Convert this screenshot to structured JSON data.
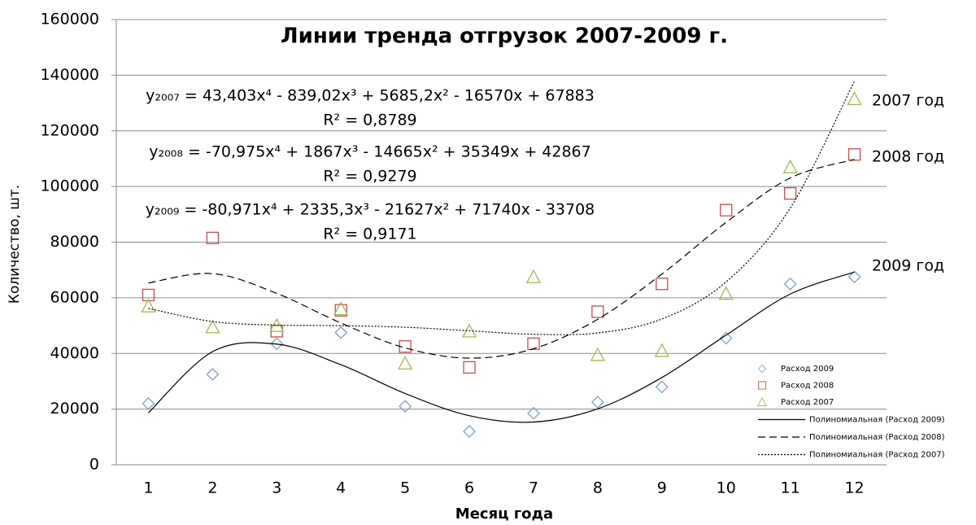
{
  "chart_data": {
    "type": "scatter",
    "title": "Линии тренда отгрузок 2007-2009 г.",
    "x_label": "Месяц года",
    "y_label": "Количество, шт.",
    "x": [
      1,
      2,
      3,
      4,
      5,
      6,
      7,
      8,
      9,
      10,
      11,
      12
    ],
    "xlim": [
      0.5,
      12.5
    ],
    "xticks": [
      1,
      2,
      3,
      4,
      5,
      6,
      7,
      8,
      9,
      10,
      11,
      12
    ],
    "ylim": [
      0,
      160000
    ],
    "yticks": [
      0,
      20000,
      40000,
      60000,
      80000,
      100000,
      120000,
      140000,
      160000
    ],
    "grid": true,
    "legend": "lower right",
    "series": [
      {
        "name": "Расход 2009",
        "kind": "points",
        "marker": "diamond",
        "color": "#7f9fcf",
        "values": [
          22000,
          32500,
          43500,
          47500,
          21000,
          12000,
          18500,
          22500,
          28000,
          45500,
          65000,
          67500
        ]
      },
      {
        "name": "Расход 2008",
        "kind": "points",
        "marker": "square",
        "color": "#c0504d",
        "values": [
          61000,
          81500,
          48000,
          55500,
          42500,
          35000,
          43500,
          55000,
          65000,
          91500,
          97500,
          111500
        ]
      },
      {
        "name": "Расход 2007",
        "kind": "points",
        "marker": "triangle",
        "color": "#9bbb59",
        "values": [
          57000,
          49500,
          50000,
          56000,
          36500,
          48000,
          67500,
          39500,
          41000,
          61500,
          107000,
          131500
        ]
      },
      {
        "name": "Полиномиальная  (Расход 2009)",
        "kind": "trend",
        "dash": "solid",
        "color": "#000000",
        "end_label": "2009 год",
        "equation": "y₂₀₀₉ = -80,971x⁴ + 2335,3x³ - 21627x² + 71740x - 33708",
        "r2": "R² = 0,9171",
        "values": [
          18659,
          40651,
          43363,
          35950,
          25622,
          17647,
          15346,
          20101,
          31350,
          46582,
          61353,
          69268
        ]
      },
      {
        "name": "Полиномиальная  (Расход 2008)",
        "kind": "trend",
        "dash": "dashed",
        "color": "#000000",
        "end_label": "2008 год",
        "equation": "y₂₀₀₈ = -70,975x⁴ + 1867x³ - 14665x² + 35349x + 42867",
        "r2": "R² = 0,9279",
        "values": [
          65347,
          68705,
          61589,
          50941,
          42003,
          38309,
          41695,
          52289,
          68519,
          87107,
          103073,
          109733
        ]
      },
      {
        "name": "Полиномиальная  (Расход 2007)",
        "kind": "trend",
        "dash": "dotted",
        "color": "#000000",
        "end_label": "2007 год",
        "equation": "y₂₀₀₇ = 43,403x⁴ - 839,02x³ + 5685,2x² - 16570x + 67883",
        "r2": "R² = 0,8789",
        "values": [
          56203,
          51466,
          50202,
          49980,
          49412,
          48152,
          46895,
          47377,
          52375,
          65713,
          92250,
          137884
        ]
      }
    ]
  }
}
